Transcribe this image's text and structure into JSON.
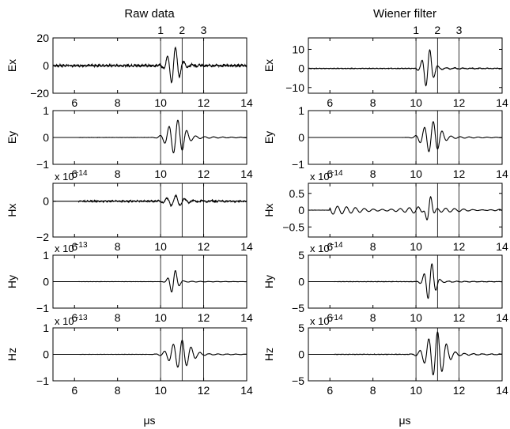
{
  "chart_data": {
    "type": "line",
    "columns": [
      {
        "title": "Raw data",
        "xlabel": "μs"
      },
      {
        "title": "Wiener filter",
        "xlabel": "μs"
      }
    ],
    "xlim": [
      5,
      14
    ],
    "x_ticks": [
      6,
      8,
      10,
      12,
      14
    ],
    "markers": [
      {
        "label": "1",
        "x": 10
      },
      {
        "label": "2",
        "x": 11
      },
      {
        "label": "3",
        "x": 12
      }
    ],
    "panels": [
      {
        "col": 0,
        "ylabel": "Ex",
        "ylim": [
          -20,
          20
        ],
        "yticks": [
          "20",
          "0",
          "−20"
        ],
        "exponent": "",
        "signal": {
          "noise": 0.5,
          "noise_start": 5,
          "burst_amp": 13,
          "burst_center": 10.6,
          "burst_width": 0.35,
          "freq": 2.6,
          "tail": 0.08
        }
      },
      {
        "col": 0,
        "ylabel": "Ey",
        "ylim": [
          -1,
          1
        ],
        "yticks": [
          "1",
          "0",
          "−1"
        ],
        "exponent": "",
        "signal": {
          "noise": 0.05,
          "noise_start": 6.2,
          "burst_amp": 0.6,
          "burst_center": 10.7,
          "burst_width": 0.5,
          "freq": 2.4,
          "tail": 0.12
        }
      },
      {
        "col": 0,
        "ylabel": "Hx",
        "ylim": [
          -2,
          1
        ],
        "yticks": [
          "0",
          "−2"
        ],
        "exponent": "x 10−14",
        "signal": {
          "noise": 0.35,
          "noise_start": 6.2,
          "burst_amp": 0.25,
          "burst_center": 10.6,
          "burst_width": 0.5,
          "freq": 2.4,
          "tail": 0.3
        }
      },
      {
        "col": 0,
        "ylabel": "Hy",
        "ylim": [
          -1,
          1
        ],
        "yticks": [
          "1",
          "0",
          "−1"
        ],
        "exponent": "x 10−13",
        "signal": {
          "noise": 0.04,
          "noise_start": 6.2,
          "burst_amp": 0.45,
          "burst_center": 10.6,
          "burst_width": 0.25,
          "freq": 2.6,
          "tail": 0.05
        }
      },
      {
        "col": 0,
        "ylabel": "Hz",
        "ylim": [
          -1,
          1
        ],
        "yticks": [
          "1",
          "0",
          "−1"
        ],
        "exponent": "x 10−13",
        "signal": {
          "noise": 0.05,
          "noise_start": 6.2,
          "burst_amp": 0.5,
          "burst_center": 10.9,
          "burst_width": 0.6,
          "freq": 2.4,
          "tail": 0.1
        }
      },
      {
        "col": 1,
        "ylabel": "Ex",
        "ylim": [
          -13,
          16
        ],
        "yticks": [
          "10",
          "0",
          "−10"
        ],
        "exponent": "",
        "signal": {
          "noise": 0.15,
          "noise_start": 5,
          "burst_amp": 10,
          "burst_center": 10.55,
          "burst_width": 0.3,
          "freq": 2.6,
          "tail": 0.06
        }
      },
      {
        "col": 1,
        "ylabel": "Ey",
        "ylim": [
          -1,
          1
        ],
        "yticks": [
          "1",
          "0",
          "−1"
        ],
        "exponent": "",
        "signal": {
          "noise": 0.015,
          "noise_start": 6.2,
          "burst_amp": 0.55,
          "burst_center": 10.7,
          "burst_width": 0.5,
          "freq": 2.4,
          "tail": 0.12
        }
      },
      {
        "col": 1,
        "ylabel": "Hx",
        "ylim": [
          -0.8,
          0.8
        ],
        "yticks": [
          "0.5",
          "0",
          "−0.5"
        ],
        "exponent": "x 10−14",
        "signal": {
          "noise": 0.05,
          "noise_start": 5,
          "burst_amp": 0.5,
          "burst_center": 10.6,
          "burst_width": 0.2,
          "freq": 2.4,
          "tail": 0.2,
          "wave": true
        }
      },
      {
        "col": 1,
        "ylabel": "Hy",
        "ylim": [
          -5,
          5
        ],
        "yticks": [
          "5",
          "0",
          "−5"
        ],
        "exponent": "x 10−14",
        "signal": {
          "noise": 0.08,
          "noise_start": 6.2,
          "burst_amp": 3.5,
          "burst_center": 10.65,
          "burst_width": 0.3,
          "freq": 2.6,
          "tail": 0.05
        }
      },
      {
        "col": 1,
        "ylabel": "Hz",
        "ylim": [
          -5,
          5
        ],
        "yticks": [
          "5",
          "0",
          "−5"
        ],
        "exponent": "x 10−14",
        "signal": {
          "noise": 0.1,
          "noise_start": 6.2,
          "burst_amp": 4,
          "burst_center": 10.9,
          "burst_width": 0.55,
          "freq": 2.4,
          "tail": 0.1
        }
      }
    ]
  }
}
